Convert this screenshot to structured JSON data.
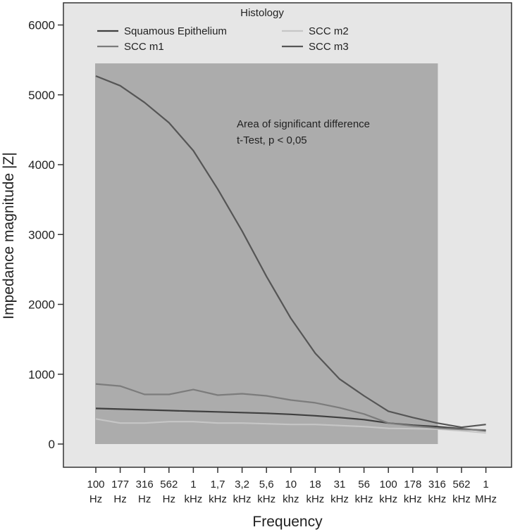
{
  "chart_data": {
    "type": "line",
    "legend_title": "Histology",
    "legend_placement": "top",
    "xlabel": "Frequency",
    "ylabel": "Impedance magnitude |Z|",
    "ylim": [
      0,
      6000
    ],
    "yticks": [
      0,
      1000,
      2000,
      3000,
      4000,
      5000,
      6000
    ],
    "categories": [
      [
        "100",
        "Hz"
      ],
      [
        "177",
        "Hz"
      ],
      [
        "316",
        "Hz"
      ],
      [
        "562",
        "Hz"
      ],
      [
        "1",
        "kHz"
      ],
      [
        "1,7",
        "kHz"
      ],
      [
        "3,2",
        "kHz"
      ],
      [
        "5,6",
        "kHz"
      ],
      [
        "10",
        "khz"
      ],
      [
        "18",
        "kHz"
      ],
      [
        "31",
        "kHz"
      ],
      [
        "56",
        "kHz"
      ],
      [
        "100",
        "kHz"
      ],
      [
        "178",
        "kHz"
      ],
      [
        "316",
        "kHz"
      ],
      [
        "562",
        "kHz"
      ],
      [
        "1",
        "MHz"
      ]
    ],
    "shaded_region": {
      "from_category": 0,
      "to_category": 14,
      "y_top": 5450,
      "label_line1": "Area of significant difference",
      "label_line2": "t-Test, p < 0,05",
      "color": "#acacac"
    },
    "series": [
      {
        "name": "Squamous Epithelium",
        "color": "#3f3f3f",
        "values": [
          510,
          500,
          490,
          480,
          470,
          460,
          450,
          440,
          425,
          405,
          380,
          350,
          300,
          270,
          250,
          220,
          190
        ]
      },
      {
        "name": "SCC m2",
        "color": "#c6c6c6",
        "values": [
          360,
          300,
          300,
          320,
          320,
          300,
          300,
          290,
          280,
          280,
          265,
          250,
          225,
          220,
          215,
          190,
          160
        ]
      },
      {
        "name": "SCC m1",
        "color": "#7c7c7c",
        "values": [
          860,
          830,
          710,
          710,
          780,
          700,
          720,
          690,
          630,
          590,
          520,
          430,
          300,
          260,
          230,
          210,
          200
        ]
      },
      {
        "name": "SCC m3",
        "color": "#565656",
        "values": [
          5270,
          5130,
          4890,
          4600,
          4200,
          3650,
          3050,
          2400,
          1800,
          1300,
          930,
          690,
          470,
          380,
          300,
          240,
          280
        ]
      }
    ],
    "plot_background": "#e6e6e6"
  }
}
